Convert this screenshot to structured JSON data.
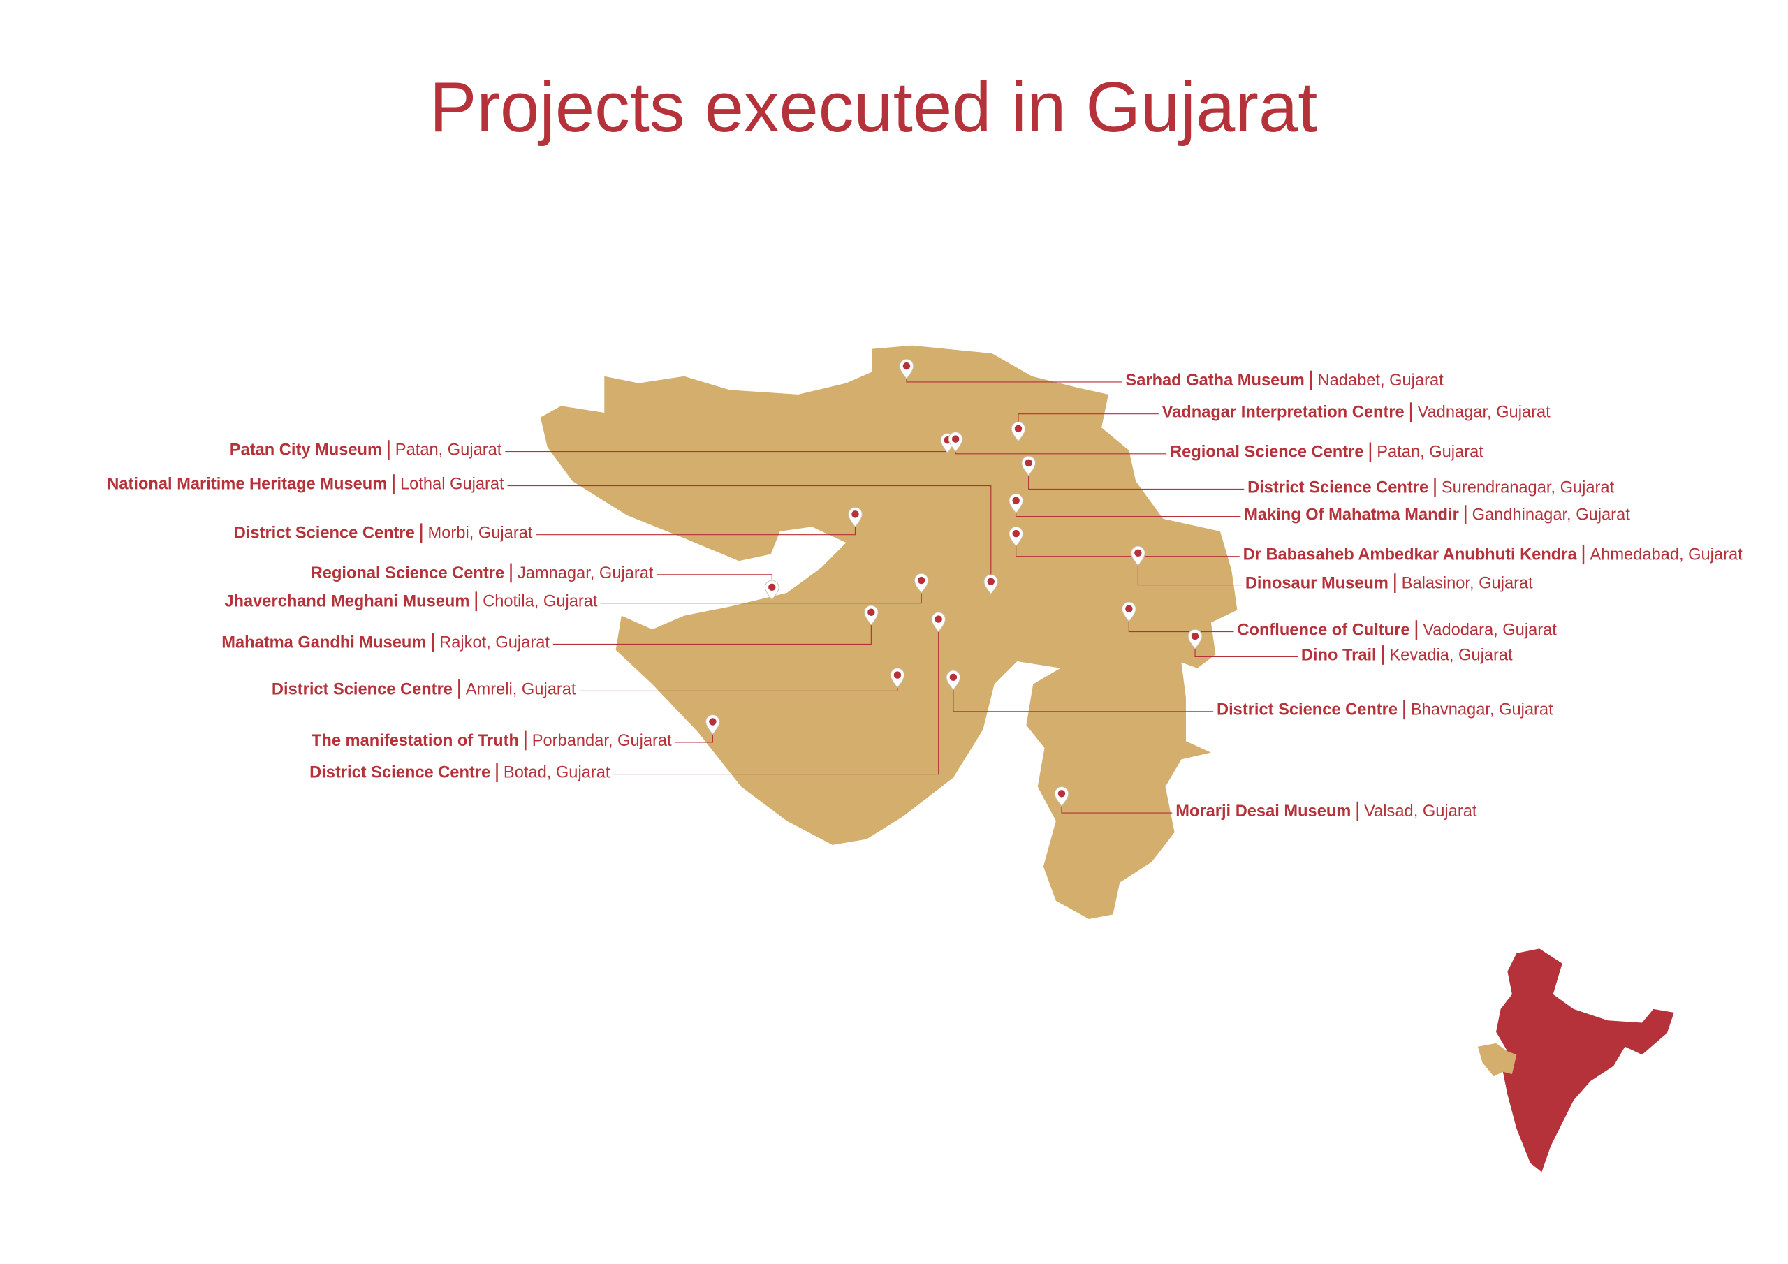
{
  "title": "Projects executed in Gujarat",
  "projects": [
    {
      "name": "Sarhad Gatha Museum",
      "location": "Nadabet, Gujarat"
    },
    {
      "name": "Vadnagar Interpretation Centre",
      "location": "Vadnagar, Gujarat"
    },
    {
      "name": "Patan City Museum",
      "location": "Patan, Gujarat"
    },
    {
      "name": "Regional Science Centre",
      "location": "Patan, Gujarat"
    },
    {
      "name": "National Maritime Heritage Museum",
      "location": "Lothal Gujarat"
    },
    {
      "name": "District Science Centre",
      "location": "Surendranagar, Gujarat"
    },
    {
      "name": "Making Of Mahatma Mandir",
      "location": "Gandhinagar, Gujarat"
    },
    {
      "name": "District Science Centre",
      "location": "Morbi, Gujarat"
    },
    {
      "name": "Dr Babasaheb Ambedkar Anubhuti Kendra",
      "location": "Ahmedabad, Gujarat"
    },
    {
      "name": "Regional Science Centre",
      "location": "Jamnagar, Gujarat"
    },
    {
      "name": "Dinosaur Museum",
      "location": "Balasinor, Gujarat"
    },
    {
      "name": "Jhaverchand Meghani Museum",
      "location": "Chotila, Gujarat"
    },
    {
      "name": "Confluence of Culture",
      "location": "Vadodara, Gujarat"
    },
    {
      "name": "Mahatma Gandhi Museum",
      "location": "Rajkot, Gujarat"
    },
    {
      "name": "Dino Trail",
      "location": "Kevadia, Gujarat"
    },
    {
      "name": "District Science Centre",
      "location": "Amreli, Gujarat"
    },
    {
      "name": "District Science Centre",
      "location": "Bhavnagar, Gujarat"
    },
    {
      "name": "The manifestation of Truth",
      "location": "Porbandar, Gujarat"
    },
    {
      "name": "District Science Centre",
      "location": "Botad, Gujarat"
    },
    {
      "name": "Morarji Desai Museum",
      "location": "Valsad, Gujarat"
    }
  ]
}
